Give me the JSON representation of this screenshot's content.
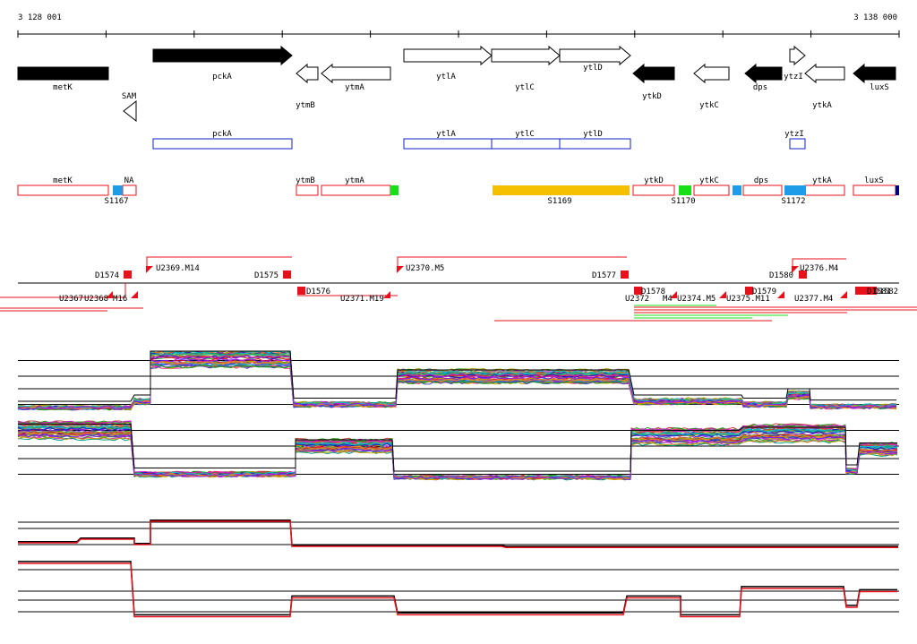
{
  "coordinates": {
    "start": "3 128 001",
    "end": "3 138 000"
  },
  "genes_top": [
    {
      "label": "metK",
      "fill": "black",
      "dir": "none"
    },
    {
      "label": "pckA",
      "fill": "black",
      "dir": "right"
    },
    {
      "label": "ytmB",
      "fill": "white",
      "dir": "left"
    },
    {
      "label": "ytmA",
      "fill": "white",
      "dir": "left"
    },
    {
      "label": "ytlA",
      "fill": "white",
      "dir": "right"
    },
    {
      "label": "ytlC",
      "fill": "white",
      "dir": "right"
    },
    {
      "label": "ytlD",
      "fill": "white",
      "dir": "right"
    },
    {
      "label": "ytkD",
      "fill": "black",
      "dir": "left"
    },
    {
      "label": "ytkC",
      "fill": "white",
      "dir": "left"
    },
    {
      "label": "dps",
      "fill": "black",
      "dir": "left"
    },
    {
      "label": "ytzI",
      "fill": "white",
      "dir": "right"
    },
    {
      "label": "ytkA",
      "fill": "white",
      "dir": "left"
    },
    {
      "label": "luxS",
      "fill": "black",
      "dir": "left"
    }
  ],
  "sam_label": "SAM",
  "blue_boxes": [
    "pckA",
    "ytlA",
    "ytlC",
    "ytlD",
    "ytzI"
  ],
  "red_boxes": [
    "metK",
    "NA",
    "ytmB",
    "ytmA",
    "ytkD",
    "ytkC",
    "dps",
    "ytkA",
    "luxS"
  ],
  "segment_labels": [
    "S1167",
    "S1169",
    "S1170",
    "S1172"
  ],
  "d_labels": [
    "D1574",
    "D1575",
    "D1576",
    "D1577",
    "D1578",
    "D1579",
    "D1580"
  ],
  "u_labels": [
    "U2369.M14",
    "U2370.M5",
    "U2371.M19",
    "U2376.M4",
    "U2377.M4",
    "U2374.M5",
    "U2375.M11",
    "U2367",
    "U2368",
    "M16",
    "U2372",
    "M4",
    "D1581",
    "D1582"
  ],
  "colors": {
    "red": "#e8101a",
    "blue": "#1020c8",
    "yellow": "#f5c000",
    "green": "#18e018",
    "skyblue": "#1e9ce8",
    "navy": "#000080"
  }
}
